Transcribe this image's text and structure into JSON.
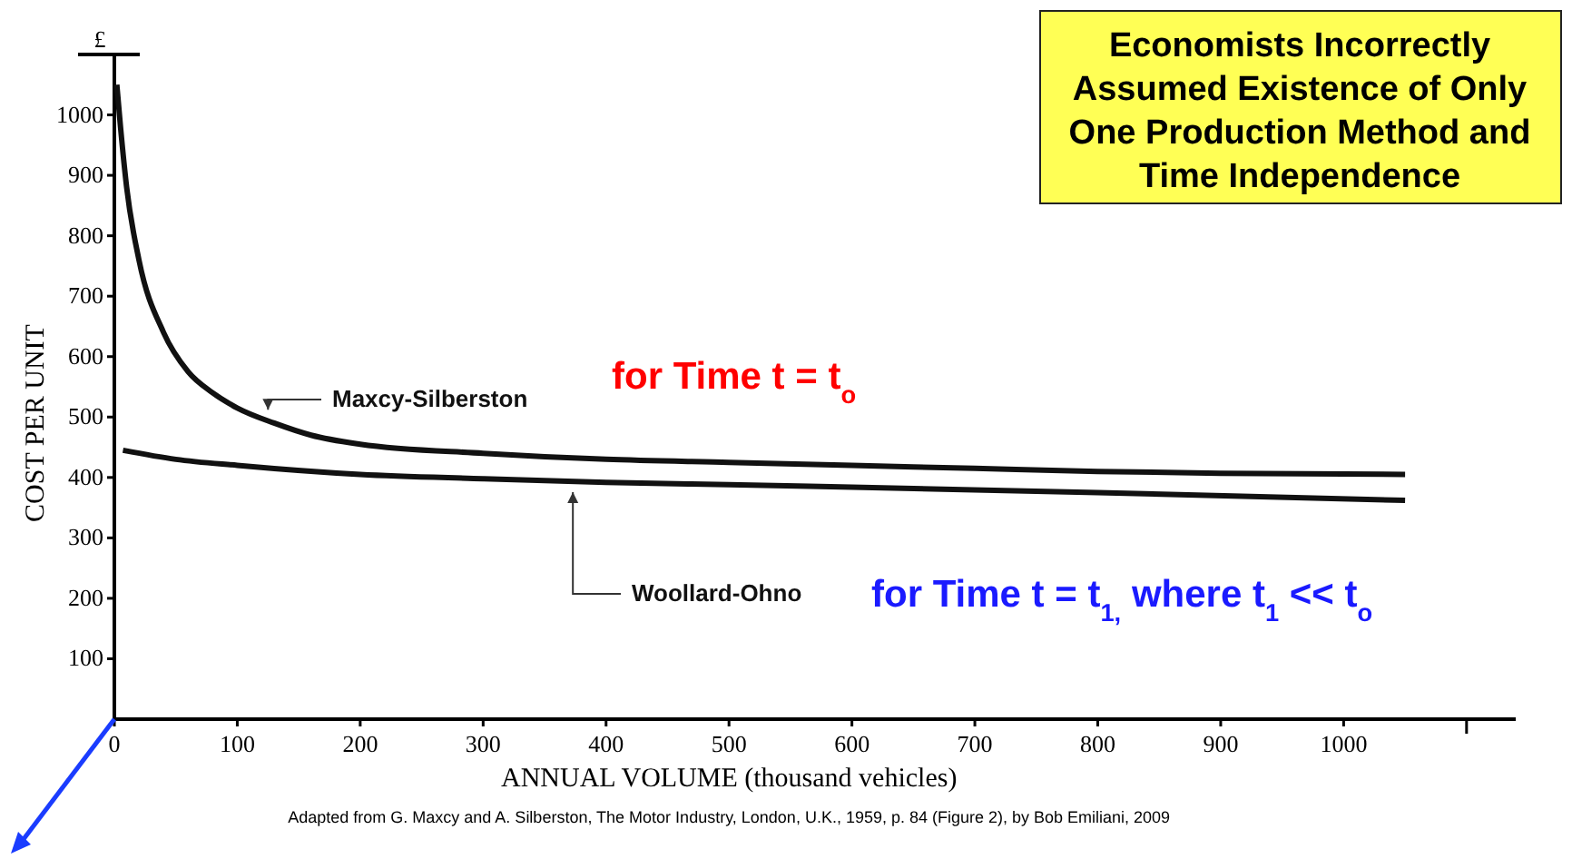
{
  "chart_data": {
    "type": "line",
    "title": "Economists Incorrectly Assumed Existence of Only One Production Method and Time Independence",
    "xlabel": "ANNUAL  VOLUME  (thousand  vehicles)",
    "ylabel": "COST  PER  UNIT",
    "xlim": [
      0,
      1140
    ],
    "xticks": [
      0,
      100,
      200,
      300,
      400,
      500,
      600,
      700,
      800,
      900,
      1000,
      {
        "value": 1100,
        "label": null
      }
    ],
    "ylim": [
      0,
      1100
    ],
    "yticks": [
      100,
      200,
      300,
      400,
      500,
      600,
      700,
      800,
      900,
      1000,
      {
        "value": 1100,
        "label": "£"
      }
    ],
    "grid": false,
    "marker": "none",
    "line_style": "solid",
    "series": [
      {
        "name": "Maxcy-Silberston",
        "color": "#111111",
        "x": [
          2,
          5,
          10,
          20,
          40,
          60,
          80,
          100,
          130,
          160,
          200,
          300,
          400,
          500,
          600,
          700,
          800,
          900,
          1050
        ],
        "values": [
          1050,
          980,
          880,
          760,
          640,
          575,
          540,
          515,
          490,
          470,
          455,
          440,
          430,
          425,
          420,
          415,
          410,
          407,
          405
        ]
      },
      {
        "name": "Woollard-Ohno",
        "color": "#111111",
        "x": [
          7,
          50,
          100,
          200,
          300,
          400,
          500,
          600,
          800,
          1050
        ],
        "values": [
          445,
          430,
          420,
          405,
          398,
          392,
          388,
          384,
          375,
          362
        ]
      }
    ],
    "annotations": [
      "for Time t = t$_{o}$",
      "for Time t = t$_{1,}$ where t$_{1}$ << t$_{o}$",
      "Adapted from G. Maxcy and A. Silberston, The Motor Industry, London, U.K., 1959, p. 84 (Figure 2), by Bob Emiliani, 2009"
    ]
  }
}
